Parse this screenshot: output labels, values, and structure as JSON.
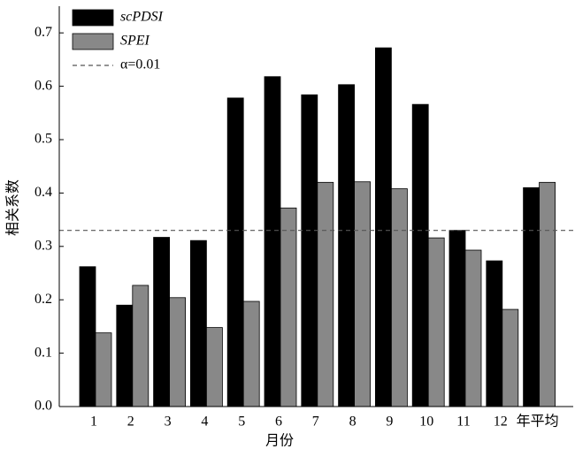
{
  "chart_data": {
    "type": "bar",
    "xlabel": "月份",
    "ylabel": "相关系数",
    "categories": [
      "1",
      "2",
      "3",
      "4",
      "5",
      "6",
      "7",
      "8",
      "9",
      "10",
      "11",
      "12",
      "年平均"
    ],
    "series": [
      {
        "name": "scPDSI",
        "color": "#000000",
        "values": [
          0.262,
          0.19,
          0.317,
          0.311,
          0.578,
          0.618,
          0.584,
          0.603,
          0.672,
          0.566,
          0.33,
          0.273,
          0.41
        ]
      },
      {
        "name": "SPEI",
        "color": "#888888",
        "values": [
          0.138,
          0.227,
          0.204,
          0.148,
          0.197,
          0.372,
          0.42,
          0.421,
          0.408,
          0.316,
          0.293,
          0.182,
          0.42
        ]
      }
    ],
    "reference_line": {
      "name": "α=0.01",
      "value": 0.33,
      "color": "#555555"
    },
    "ylim": [
      0,
      0.75
    ],
    "yticks": [
      {
        "value": 0,
        "label": "0.0"
      },
      0.1,
      0.2,
      0.3,
      0.4,
      0.5,
      0.6,
      0.7
    ],
    "legend": "upper-left"
  }
}
